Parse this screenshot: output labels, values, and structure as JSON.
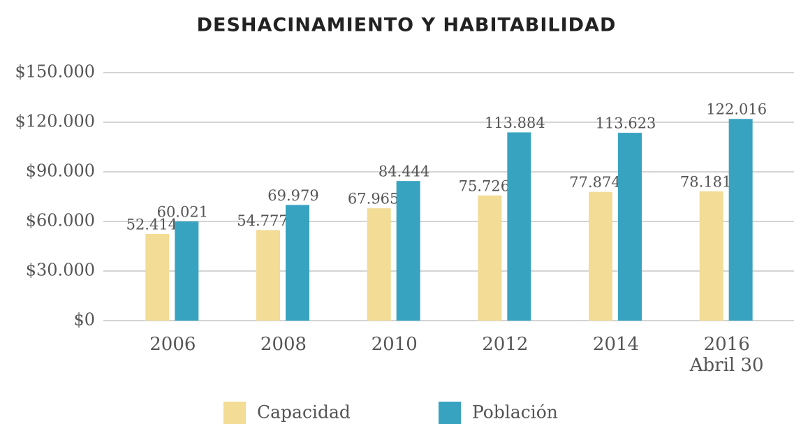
{
  "chart_data": {
    "type": "bar",
    "title": "DESHACINAMIENTO Y HABITABILIDAD",
    "categories": [
      "2006",
      "2008",
      "2010",
      "2012",
      "2014",
      "2016\nAbril 30"
    ],
    "series": [
      {
        "name": "Capacidad",
        "color": "#f2dc96",
        "values": [
          52414,
          54777,
          67965,
          75726,
          77874,
          78181
        ],
        "value_labels": [
          "52.414",
          "54.777",
          "67.965",
          "75.726",
          "77.874",
          "78.181"
        ]
      },
      {
        "name": "Población",
        "color": "#38a3c0",
        "values": [
          60021,
          69979,
          84444,
          113884,
          113623,
          122016
        ],
        "value_labels": [
          "60.021",
          "69.979",
          "84.444",
          "113.884",
          "113.623",
          "122.016"
        ]
      }
    ],
    "ylim": [
      0,
      150000
    ],
    "yticks": [
      {
        "value": 0,
        "label": "$0"
      },
      {
        "value": 30000,
        "label": "$30.000"
      },
      {
        "value": 60000,
        "label": "$60.000"
      },
      {
        "value": 90000,
        "label": "$90.000"
      },
      {
        "value": 120000,
        "label": "$120.000"
      },
      {
        "value": 150000,
        "label": "$150.000"
      }
    ],
    "grid": true
  }
}
